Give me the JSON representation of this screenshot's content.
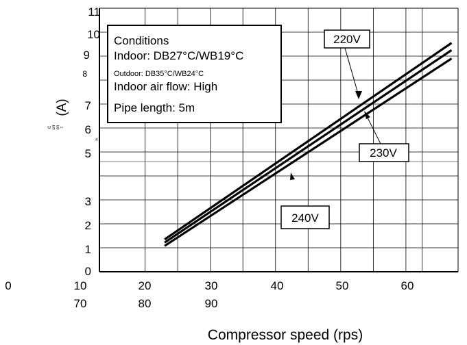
{
  "chart_data": {
    "type": "line",
    "title": "",
    "xlabel": "Compressor speed (rps)",
    "ylabel_main": "(A)",
    "ylabel_fragments": [
      "C",
      "urr",
      "en",
      "t"
    ],
    "stray_mark": "4",
    "y_ticks": [
      "0",
      "1",
      "2",
      "3",
      "5",
      "6",
      "7",
      "8",
      "9",
      "10",
      "11"
    ],
    "x_ticks_row1": [
      "0",
      "10",
      "20",
      "30",
      "40",
      "50",
      "60"
    ],
    "x_ticks_row2": [
      "70",
      "80",
      "90"
    ],
    "xlim": [
      13,
      68
    ],
    "ylim": [
      0,
      11
    ],
    "grid": true,
    "series": [
      {
        "name": "220V",
        "x": [
          23,
          67
        ],
        "y": [
          1.35,
          9.55
        ]
      },
      {
        "name": "230V",
        "x": [
          23,
          67
        ],
        "y": [
          1.22,
          9.25
        ]
      },
      {
        "name": "240V",
        "x": [
          23,
          67
        ],
        "y": [
          1.08,
          8.9
        ]
      }
    ],
    "conditions": {
      "title": "Conditions",
      "lines": [
        "Indoor: DB27°C/WB19°C",
        "Outdoor: DB35°C/WB24°C",
        "Indoor air flow: High",
        "Pipe length: 5m"
      ]
    }
  }
}
